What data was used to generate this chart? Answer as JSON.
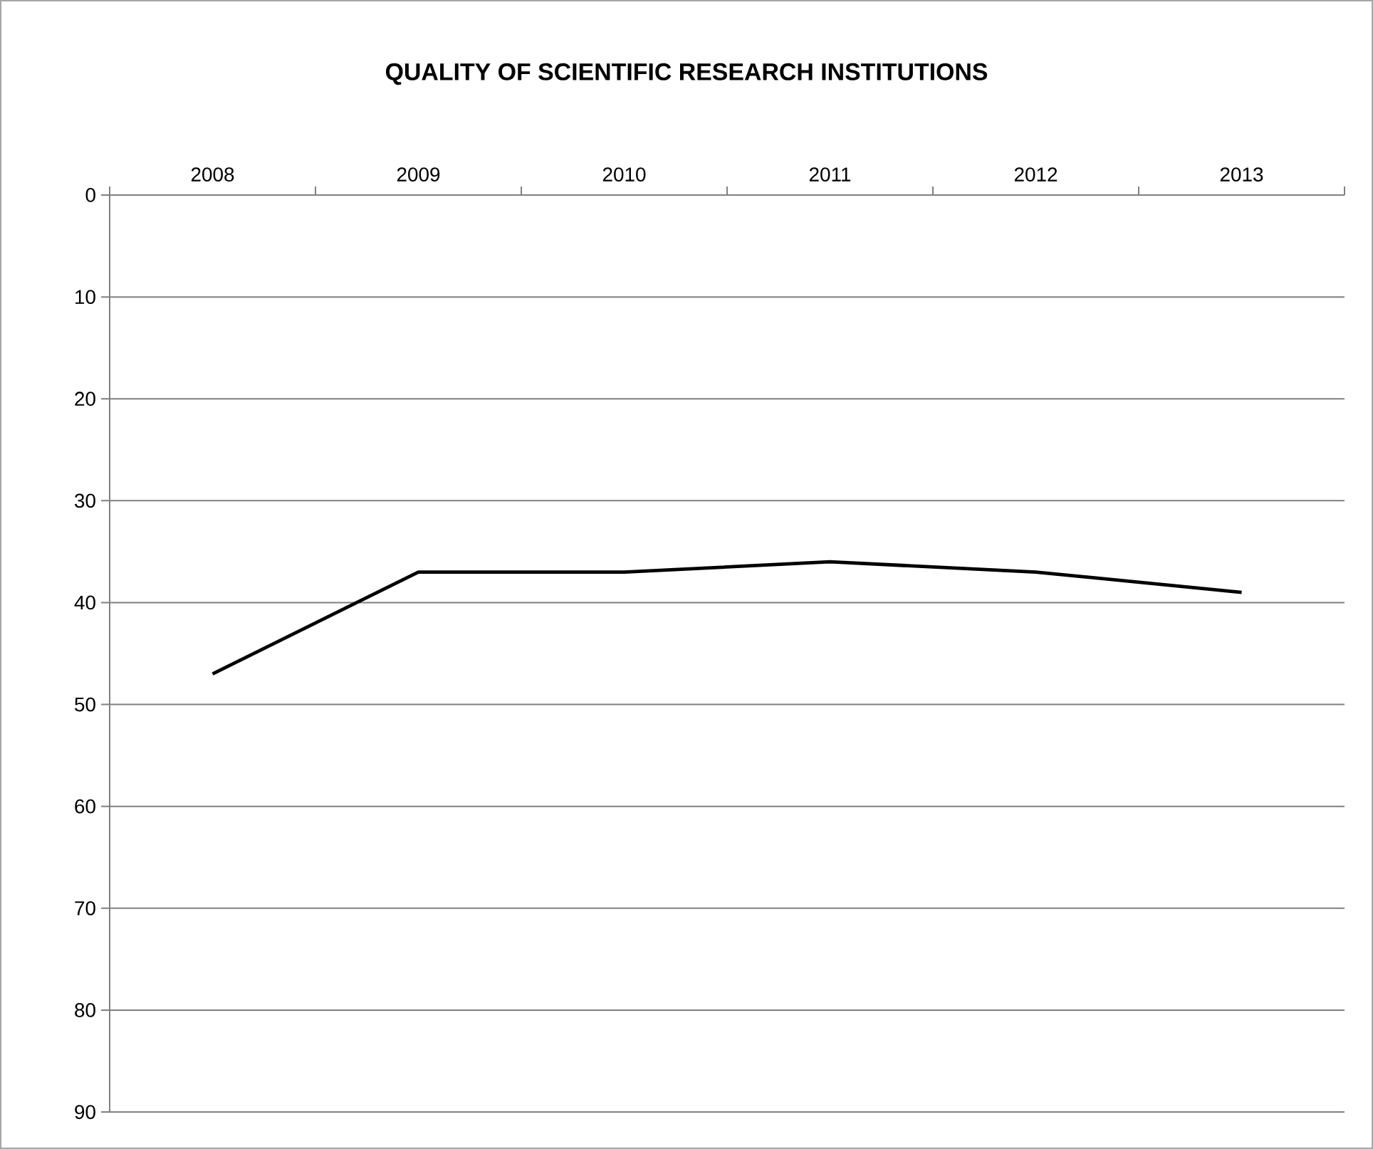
{
  "chart_data": {
    "type": "line",
    "title": "QUALITY OF SCIENTIFIC RESEARCH INSTITUTIONS",
    "categories": [
      "2008",
      "2009",
      "2010",
      "2011",
      "2012",
      "2013"
    ],
    "series": [
      {
        "color": "#000000",
        "values": [
          47,
          37,
          37,
          36,
          37,
          39
        ]
      }
    ],
    "ylim": [
      90,
      0
    ],
    "yticks": [
      0,
      10,
      20,
      30,
      40,
      50,
      60,
      70,
      80,
      90
    ],
    "grid": "y",
    "marker": "none",
    "line_style": "solid"
  }
}
